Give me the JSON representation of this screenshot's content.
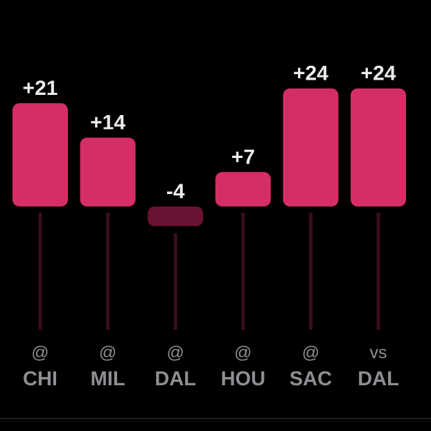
{
  "chart_data": {
    "type": "bar",
    "categories": [
      "CHI",
      "MIL",
      "DAL",
      "HOU",
      "SAC",
      "DAL"
    ],
    "prefixes": [
      "@",
      "@",
      "@",
      "@",
      "@",
      "vs"
    ],
    "values": [
      21,
      14,
      -4,
      7,
      24,
      24
    ],
    "value_labels": [
      "+21",
      "+14",
      "-4",
      "+7",
      "+24",
      "+24"
    ],
    "grid": false,
    "legend": "none"
  },
  "colors": {
    "positive_bar": "#d42d68",
    "negative_bar": "#6a1234",
    "stem": "#3b0d1d",
    "value_text": "#ececec",
    "axis_text": "#8e8e93",
    "background": "#000000"
  }
}
